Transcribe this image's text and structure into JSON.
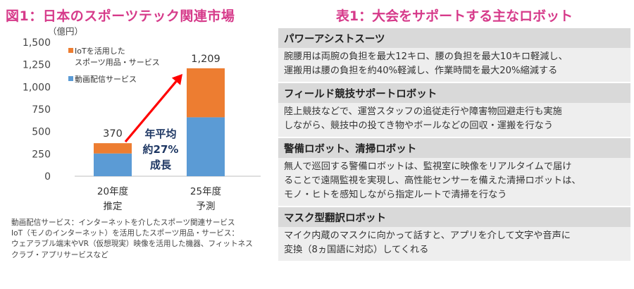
{
  "figure": {
    "title": "図1：日本のスポーツテック関連市場",
    "notes": [
      "動画配信サービス：インターネットを介したスポーツ関連サービス",
      "IoT（モノのインターネット）を活用したスポーツ用品・サービス：",
      "ウェアラブル端末やVR（仮想現実）映像を活用した機器、フィットネス",
      "クラブ・アプリサービスなど"
    ]
  },
  "chart_data": {
    "type": "bar",
    "stacked": true,
    "unit_label": "（億円）",
    "categories": [
      {
        "line1": "20年度",
        "line2": "推定"
      },
      {
        "line1": "25年度",
        "line2": "予測"
      }
    ],
    "series": [
      {
        "name": "動画配信サービス",
        "color": "#5b9bd5",
        "values": [
          255,
          660
        ]
      },
      {
        "name_lines": [
          "IoTを活用した",
          "スポーツ用品・サービス"
        ],
        "color": "#ed7d31",
        "values": [
          115,
          549
        ]
      }
    ],
    "totals": [
      "370",
      "1,209"
    ],
    "ylim": [
      0,
      1500
    ],
    "yticks": [
      {
        "value": 0,
        "label": "0"
      },
      {
        "value": 250,
        "label": "250"
      },
      {
        "value": 500,
        "label": "500"
      },
      {
        "value": 750,
        "label": "750"
      },
      {
        "value": 1000,
        "label": "1,000"
      },
      {
        "value": 1250,
        "label": "1,250"
      },
      {
        "value": 1500,
        "label": "1,500"
      }
    ],
    "legend_order": [
      1,
      0
    ],
    "legend_position": "top-left",
    "annotation": {
      "lines": [
        "年平均",
        "約27%",
        "成長"
      ],
      "arrow_color": "#ff0000"
    }
  },
  "table": {
    "title": "表1：大会をサポートする主なロボット",
    "rows": [
      {
        "name": "パワーアシストスーツ",
        "lines": [
          "腕腰用は両腕の負担を最大12キロ、腰の負担を最大10キロ軽減し、",
          "運搬用は腰の負担を約40%軽減し、作業時間を最大20%縮減する"
        ]
      },
      {
        "name": "フィールド競技サポートロボット",
        "lines": [
          "陸上競技などで、運営スタッフの追従走行や障害物回避走行も実施",
          "しながら、競技中の投てき物やボールなどの回収・運搬を行なう"
        ]
      },
      {
        "name": "警備ロボット、清掃ロボット",
        "lines": [
          "無人で巡回する警備ロボットは、監視室に映像をリアルタイムで届け",
          "ることで遠隔監視を実現し、高性能センサーを備えた清掃ロボットは、",
          "モノ・ヒトを感知しながら指定ルートで清掃を行なう"
        ]
      },
      {
        "name": "マスク型翻訳ロボット",
        "lines": [
          "マイク内蔵のマスクに向かって話すと、アプリを介して文字や音声に",
          "変換（8ヵ国語に対応）してくれる"
        ]
      }
    ]
  }
}
